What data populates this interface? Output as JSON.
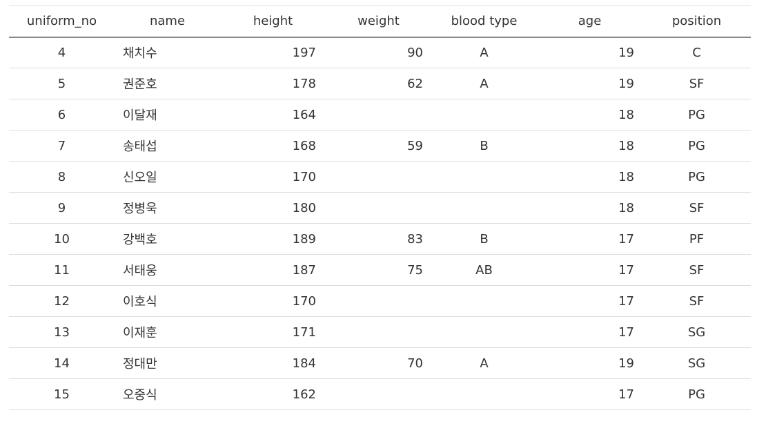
{
  "table": {
    "headers": [
      "uniform_no",
      "name",
      "height",
      "weight",
      "blood type",
      "age",
      "position"
    ],
    "rows": [
      [
        "4",
        "채치수",
        "197",
        "90",
        "A",
        "19",
        "C"
      ],
      [
        "5",
        "권준호",
        "178",
        "62",
        "A",
        "19",
        "SF"
      ],
      [
        "6",
        "이달재",
        "164",
        "",
        "",
        "18",
        "PG"
      ],
      [
        "7",
        "송태섭",
        "168",
        "59",
        "B",
        "18",
        "PG"
      ],
      [
        "8",
        "신오일",
        "170",
        "",
        "",
        "18",
        "PG"
      ],
      [
        "9",
        "정병욱",
        "180",
        "",
        "",
        "18",
        "SF"
      ],
      [
        "10",
        "강백호",
        "189",
        "83",
        "B",
        "17",
        "PF"
      ],
      [
        "11",
        "서태웅",
        "187",
        "75",
        "AB",
        "17",
        "SF"
      ],
      [
        "12",
        "이호식",
        "170",
        "",
        "",
        "17",
        "SF"
      ],
      [
        "13",
        "이재훈",
        "171",
        "",
        "",
        "17",
        "SG"
      ],
      [
        "14",
        "정대만",
        "184",
        "70",
        "A",
        "19",
        "SG"
      ],
      [
        "15",
        "오중식",
        "162",
        "",
        "",
        "17",
        "PG"
      ]
    ]
  }
}
